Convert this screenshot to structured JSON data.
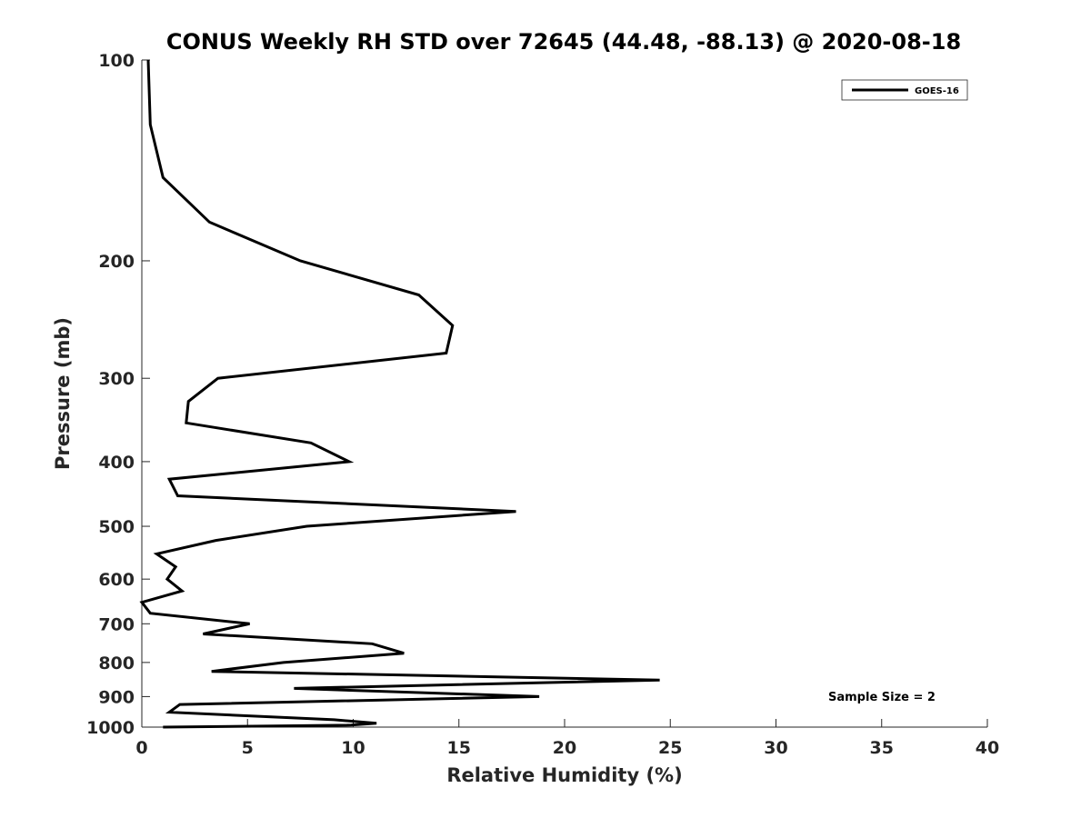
{
  "chart_data": {
    "type": "line",
    "title": "CONUS Weekly RH STD over 72645 (44.48, -88.13) @ 2020-08-18",
    "xlabel": "Relative Humidity (%)",
    "ylabel": "Pressure (mb)",
    "xlim": [
      0,
      40
    ],
    "ylim": [
      100,
      1000
    ],
    "yscale": "log",
    "grid": false,
    "x_ticks": [
      0,
      5,
      10,
      15,
      20,
      25,
      30,
      35,
      40
    ],
    "x_tick_labels": [
      "0",
      "5",
      "10",
      "15",
      "20",
      "25",
      "30",
      "35",
      "40"
    ],
    "y_ticks": [
      100,
      200,
      300,
      400,
      500,
      600,
      700,
      800,
      900,
      1000
    ],
    "y_tick_labels": [
      "100",
      "200",
      "300",
      "400",
      "500",
      "600",
      "700",
      "800",
      "900",
      "1000"
    ],
    "legend_position": "top-right",
    "annotation": "Sample Size = 2",
    "series": [
      {
        "name": "GOES-16",
        "color": "#000000",
        "points": [
          [
            0.3,
            100
          ],
          [
            0.4,
            125
          ],
          [
            1.0,
            150
          ],
          [
            3.2,
            175
          ],
          [
            7.5,
            200
          ],
          [
            13.1,
            225
          ],
          [
            14.7,
            250
          ],
          [
            14.4,
            275
          ],
          [
            3.6,
            300
          ],
          [
            2.2,
            325
          ],
          [
            2.1,
            350
          ],
          [
            8.0,
            375
          ],
          [
            9.8,
            400
          ],
          [
            1.3,
            425
          ],
          [
            1.7,
            450
          ],
          [
            17.7,
            475
          ],
          [
            7.8,
            500
          ],
          [
            3.5,
            525
          ],
          [
            0.7,
            550
          ],
          [
            1.6,
            575
          ],
          [
            1.2,
            600
          ],
          [
            1.9,
            625
          ],
          [
            0.0,
            650
          ],
          [
            0.4,
            675
          ],
          [
            5.1,
            700
          ],
          [
            2.9,
            725
          ],
          [
            10.9,
            750
          ],
          [
            12.4,
            775
          ],
          [
            6.7,
            800
          ],
          [
            3.3,
            825
          ],
          [
            24.5,
            850
          ],
          [
            7.2,
            875
          ],
          [
            18.8,
            900
          ],
          [
            1.8,
            925
          ],
          [
            1.3,
            950
          ],
          [
            9.1,
            975
          ],
          [
            11.1,
            987
          ],
          [
            9.9,
            993
          ],
          [
            1.0,
            1000
          ]
        ]
      }
    ]
  }
}
